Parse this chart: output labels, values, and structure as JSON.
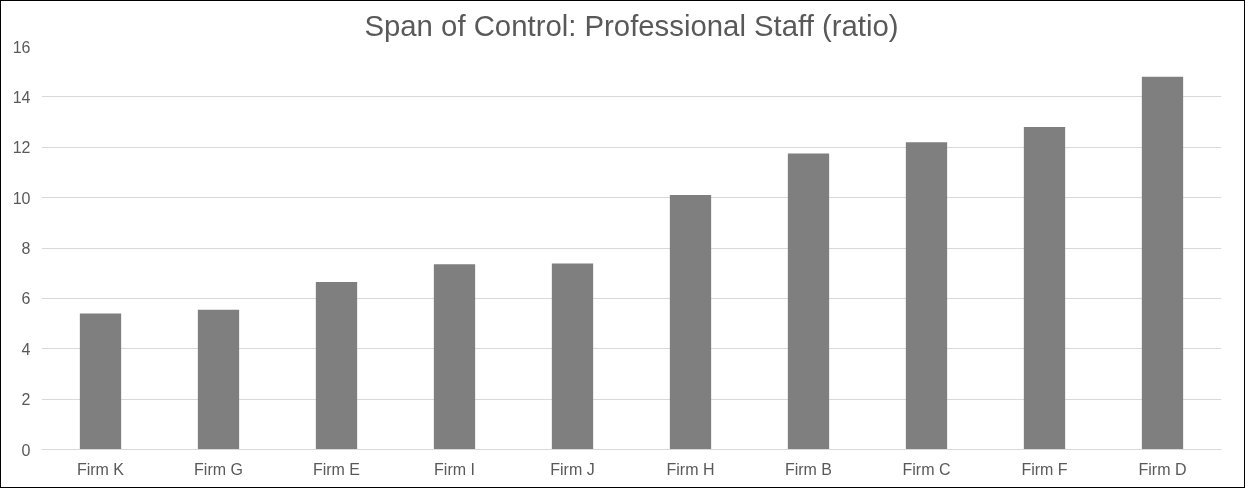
{
  "chart_data": {
    "type": "bar",
    "title": "Span of Control: Professional Staff (ratio)",
    "categories": [
      "Firm K",
      "Firm G",
      "Firm E",
      "Firm I",
      "Firm J",
      "Firm H",
      "Firm B",
      "Firm C",
      "Firm F",
      "Firm D"
    ],
    "values": [
      5.4,
      5.55,
      6.65,
      7.35,
      7.38,
      10.1,
      11.75,
      12.2,
      12.8,
      14.8
    ],
    "color": "#7f7f7f",
    "ylim": [
      0,
      16
    ],
    "yticks": [
      0,
      2,
      4,
      6,
      8,
      10,
      12,
      14,
      16
    ],
    "grid": "y"
  }
}
